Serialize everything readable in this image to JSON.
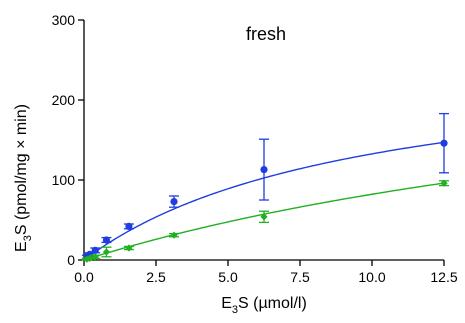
{
  "chart_data": {
    "type": "scatter",
    "title": "fresh",
    "xlabel": {
      "main": "E",
      "sub": "3",
      "rest": "S (µmol/l)"
    },
    "ylabel": {
      "main": "E",
      "sub": "3",
      "rest": "S (pmol/mg × min)"
    },
    "xlim": [
      0,
      12.5
    ],
    "ylim": [
      0,
      300
    ],
    "xticks": [
      0,
      2.5,
      5,
      7.5,
      10,
      12.5
    ],
    "xtick_labels": [
      "0.0",
      "2.5",
      "5.0",
      "7.5",
      "10.0",
      "12.5"
    ],
    "yticks": [
      0,
      100,
      200,
      300
    ],
    "ytick_labels": [
      "0",
      "100",
      "200",
      "300"
    ],
    "grid": false,
    "series": [
      {
        "color": "#1f3de0",
        "marker": "circle",
        "points": [
          {
            "x": 0.1,
            "y": 4,
            "err": 2
          },
          {
            "x": 0.2,
            "y": 7,
            "err": 2
          },
          {
            "x": 0.39,
            "y": 12,
            "err": 3
          },
          {
            "x": 0.78,
            "y": 25,
            "err": 3
          },
          {
            "x": 1.56,
            "y": 42,
            "err": 3
          },
          {
            "x": 3.125,
            "y": 73,
            "err": 7
          },
          {
            "x": 6.25,
            "y": 113,
            "err": 38
          },
          {
            "x": 12.5,
            "y": 146,
            "err": 37
          }
        ],
        "fit": {
          "model": "michaelis-menten",
          "vmax": 260,
          "km": 9.6
        }
      },
      {
        "color": "#22b022",
        "marker": "diamond",
        "points": [
          {
            "x": 0.1,
            "y": 1,
            "err": 1
          },
          {
            "x": 0.2,
            "y": 2,
            "err": 1
          },
          {
            "x": 0.39,
            "y": 4,
            "err": 2
          },
          {
            "x": 0.78,
            "y": 10,
            "err": 6
          },
          {
            "x": 1.56,
            "y": 15,
            "err": 2
          },
          {
            "x": 3.125,
            "y": 31,
            "err": 2
          },
          {
            "x": 6.25,
            "y": 54,
            "err": 7
          },
          {
            "x": 12.5,
            "y": 96,
            "err": 3
          }
        ],
        "fit": {
          "model": "michaelis-menten",
          "vmax": 300,
          "km": 26.5
        }
      }
    ]
  }
}
